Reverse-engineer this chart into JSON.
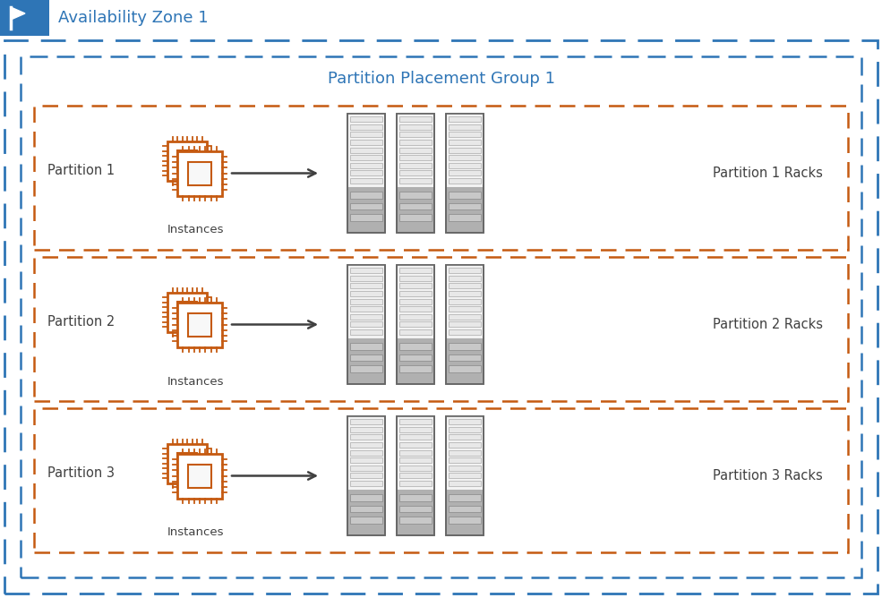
{
  "title": "Availability Zone 1",
  "ppg_title": "Partition Placement Group 1",
  "partitions": [
    {
      "label": "Partition 1",
      "racks_label": "Partition 1 Racks"
    },
    {
      "label": "Partition 2",
      "racks_label": "Partition 2 Racks"
    },
    {
      "label": "Partition 3",
      "racks_label": "Partition 3 Racks"
    }
  ],
  "instances_label": "Instances",
  "bg_color": "#ffffff",
  "az_border_color": "#2e75b6",
  "ppg_border_color": "#2e75b6",
  "partition_border_color": "#c55a11",
  "header_bg": "#2e75b6",
  "cpu_color": "#c55a11",
  "arrow_color": "#404040",
  "text_color_dark": "#404040",
  "ppg_title_color": "#2e75b6"
}
